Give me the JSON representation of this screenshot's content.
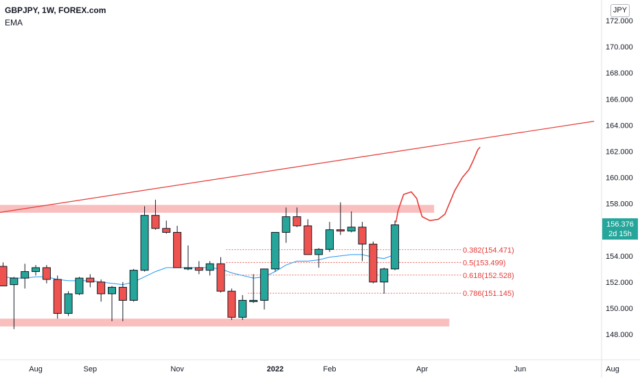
{
  "header": {
    "symbol": "GBPJPY, 1W, FOREX.com",
    "indicator": "EMA",
    "currency": "JPY"
  },
  "price_badge": {
    "price": "156.376",
    "countdown": "2d 15h"
  },
  "colors": {
    "up": "#26a69a",
    "down": "#ef5350",
    "ema": "#2196f3",
    "zone": "#f8b4b4",
    "trendline": "#e53935",
    "fib": "#e53935"
  },
  "chart_data": {
    "type": "candlestick",
    "title": "GBPJPY, 1W, FOREX.com",
    "ylim": [
      146.5,
      173.0
    ],
    "y_ticks": [
      {
        "value": 148,
        "label": "148.000"
      },
      {
        "value": 150,
        "label": "150.000"
      },
      {
        "value": 152,
        "label": "152.000"
      },
      {
        "value": 154,
        "label": "154.000"
      },
      {
        "value": 156,
        "label": "156.000"
      },
      {
        "value": 158,
        "label": "158.000"
      },
      {
        "value": 160,
        "label": "160.000"
      },
      {
        "value": 162,
        "label": "162.000"
      },
      {
        "value": 164,
        "label": "164.000"
      },
      {
        "value": 166,
        "label": "166.000"
      },
      {
        "value": 168,
        "label": "168.000"
      },
      {
        "value": 170,
        "label": "170.000"
      },
      {
        "value": 172,
        "label": "172.000"
      }
    ],
    "x_ticks": [
      {
        "index": 3,
        "label": "Aug",
        "bold": false
      },
      {
        "index": 8,
        "label": "Sep",
        "bold": false
      },
      {
        "index": 16,
        "label": "Nov",
        "bold": false
      },
      {
        "index": 25,
        "label": "2022",
        "bold": true
      },
      {
        "index": 30,
        "label": "Feb",
        "bold": false
      },
      {
        "index": 38.5,
        "label": "Apr",
        "bold": false
      },
      {
        "index": 47.5,
        "label": "Jun",
        "bold": false
      },
      {
        "index": 56,
        "label": "Aug",
        "bold": false
      }
    ],
    "candles": [
      {
        "o": 153.2,
        "h": 153.5,
        "l": 151.9,
        "c": 151.7
      },
      {
        "o": 151.8,
        "h": 152.4,
        "l": 148.4,
        "c": 152.3
      },
      {
        "o": 152.3,
        "h": 153.4,
        "l": 151.5,
        "c": 152.8
      },
      {
        "o": 152.8,
        "h": 153.3,
        "l": 152.5,
        "c": 153.1
      },
      {
        "o": 153.1,
        "h": 153.3,
        "l": 151.9,
        "c": 152.2
      },
      {
        "o": 152.2,
        "h": 152.5,
        "l": 149.2,
        "c": 149.6
      },
      {
        "o": 149.6,
        "h": 151.3,
        "l": 149.4,
        "c": 151.1
      },
      {
        "o": 151.1,
        "h": 152.4,
        "l": 151.0,
        "c": 152.3
      },
      {
        "o": 152.3,
        "h": 152.6,
        "l": 151.6,
        "c": 152.0
      },
      {
        "o": 152.0,
        "h": 152.2,
        "l": 150.5,
        "c": 151.1
      },
      {
        "o": 151.1,
        "h": 151.7,
        "l": 149.0,
        "c": 151.6
      },
      {
        "o": 151.6,
        "h": 152.0,
        "l": 149.0,
        "c": 150.6
      },
      {
        "o": 150.6,
        "h": 153.0,
        "l": 150.5,
        "c": 152.9
      },
      {
        "o": 152.9,
        "h": 157.8,
        "l": 152.8,
        "c": 157.1
      },
      {
        "o": 157.1,
        "h": 158.3,
        "l": 156.0,
        "c": 156.1
      },
      {
        "o": 156.1,
        "h": 156.7,
        "l": 155.7,
        "c": 155.8
      },
      {
        "o": 155.8,
        "h": 156.3,
        "l": 153.1,
        "c": 153.1
      },
      {
        "o": 153.0,
        "h": 154.8,
        "l": 152.9,
        "c": 153.1
      },
      {
        "o": 153.1,
        "h": 153.6,
        "l": 152.6,
        "c": 152.9
      },
      {
        "o": 152.9,
        "h": 153.6,
        "l": 152.5,
        "c": 153.4
      },
      {
        "o": 153.4,
        "h": 153.9,
        "l": 151.2,
        "c": 151.3
      },
      {
        "o": 151.3,
        "h": 151.5,
        "l": 149.1,
        "c": 149.3
      },
      {
        "o": 149.3,
        "h": 151.0,
        "l": 149.1,
        "c": 150.6
      },
      {
        "o": 150.5,
        "h": 152.6,
        "l": 150.4,
        "c": 150.6
      },
      {
        "o": 150.6,
        "h": 153.0,
        "l": 149.9,
        "c": 153.0
      },
      {
        "o": 153.0,
        "h": 155.7,
        "l": 152.8,
        "c": 155.8
      },
      {
        "o": 155.8,
        "h": 157.7,
        "l": 155.0,
        "c": 157.0
      },
      {
        "o": 157.0,
        "h": 157.7,
        "l": 156.2,
        "c": 156.3
      },
      {
        "o": 156.3,
        "h": 156.8,
        "l": 154.1,
        "c": 154.1
      },
      {
        "o": 154.1,
        "h": 154.6,
        "l": 153.1,
        "c": 154.5
      },
      {
        "o": 154.5,
        "h": 156.6,
        "l": 154.3,
        "c": 156.0
      },
      {
        "o": 156.0,
        "h": 158.1,
        "l": 155.6,
        "c": 155.9
      },
      {
        "o": 155.9,
        "h": 157.4,
        "l": 155.8,
        "c": 156.2
      },
      {
        "o": 156.2,
        "h": 156.6,
        "l": 153.6,
        "c": 154.9
      },
      {
        "o": 154.9,
        "h": 155.1,
        "l": 151.9,
        "c": 152.0
      },
      {
        "o": 152.0,
        "h": 153.1,
        "l": 151.1,
        "c": 153.0
      },
      {
        "o": 153.0,
        "h": 156.7,
        "l": 152.9,
        "c": 156.376
      }
    ],
    "ema": [
      152.4,
      152.3,
      152.3,
      152.4,
      152.4,
      152.2,
      152.1,
      152.1,
      152.1,
      152.0,
      151.9,
      151.8,
      152.0,
      152.4,
      152.8,
      153.1,
      153.1,
      153.1,
      153.1,
      153.1,
      153.0,
      152.7,
      152.5,
      152.3,
      152.4,
      152.8,
      153.3,
      153.6,
      153.6,
      153.7,
      153.9,
      154.0,
      154.1,
      154.1,
      153.9,
      153.8,
      154.1
    ],
    "zones": [
      {
        "x0": -1.3,
        "x1": 39.6,
        "y0": 157.3,
        "y1": 157.9
      },
      {
        "x0": -1.3,
        "x1": 41.0,
        "y0": 148.6,
        "y1": 149.2
      }
    ],
    "trendline": {
      "x0": -1.3,
      "y0": 157.2,
      "x1": 54.3,
      "y1": 164.3
    },
    "projection": [
      [
        36.1,
        156.6
      ],
      [
        36.3,
        157.5
      ],
      [
        36.8,
        158.7
      ],
      [
        37.5,
        158.9
      ],
      [
        38.0,
        158.4
      ],
      [
        38.2,
        157.8
      ],
      [
        38.5,
        157.0
      ],
      [
        39.2,
        156.7
      ],
      [
        40.0,
        156.8
      ],
      [
        40.6,
        157.2
      ],
      [
        41.0,
        158.0
      ],
      [
        41.5,
        159.0
      ],
      [
        42.2,
        160.0
      ],
      [
        42.8,
        160.6
      ],
      [
        43.2,
        161.3
      ],
      [
        43.6,
        162.1
      ],
      [
        43.8,
        162.3
      ]
    ],
    "fib_levels": [
      {
        "label": "0.382(154.471)",
        "value": 154.471,
        "x0": 20.5
      },
      {
        "label": "0.5(153.499)",
        "value": 153.499,
        "x0": 20.5
      },
      {
        "label": "0.618(152.528)",
        "value": 152.528,
        "x0": 20.5
      },
      {
        "label": "0.786(151.145)",
        "value": 151.145,
        "x0": 22.5
      }
    ]
  }
}
